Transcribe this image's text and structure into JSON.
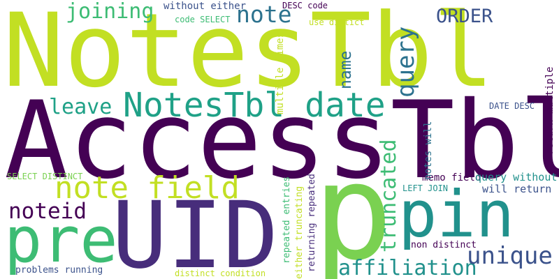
{
  "words": [
    {
      "key": "notestbl_big",
      "text": "NotesTbl",
      "color": "#c2df23"
    },
    {
      "key": "accesstbl",
      "text": "AccessTbl",
      "color": "#440154"
    },
    {
      "key": "uid",
      "text": "UID",
      "color": "#472d7b"
    },
    {
      "key": "p",
      "text": "p",
      "color": "#7ad151"
    },
    {
      "key": "pre",
      "text": "pre",
      "color": "#3dbc74"
    },
    {
      "key": "pin",
      "text": "pin",
      "color": "#21918c"
    },
    {
      "key": "note_field",
      "text": "note field",
      "color": "#c2df23"
    },
    {
      "key": "notestbl_date",
      "text": "NotesTbl date",
      "color": "#1fa187"
    },
    {
      "key": "note",
      "text": "note",
      "color": "#2c728e"
    },
    {
      "key": "joining",
      "text": "joining",
      "color": "#3dbc74"
    },
    {
      "key": "order",
      "text": "ORDER",
      "color": "#3b528b"
    },
    {
      "key": "leave",
      "text": "leave",
      "color": "#1fa187"
    },
    {
      "key": "noteid",
      "text": "noteid",
      "color": "#440154"
    },
    {
      "key": "affiliation",
      "text": "affiliation",
      "color": "#21918c"
    },
    {
      "key": "unique",
      "text": "unique",
      "color": "#3b528b"
    },
    {
      "key": "query",
      "text": "query",
      "color": "#2c728e"
    },
    {
      "key": "truncated",
      "text": "truncated",
      "color": "#3dbc74"
    },
    {
      "key": "name",
      "text": "name",
      "color": "#2c728e"
    },
    {
      "key": "without_either",
      "text": "without either",
      "color": "#3b528b"
    },
    {
      "key": "code_select",
      "text": "code SELECT",
      "color": "#3dbc74"
    },
    {
      "key": "desc_code",
      "text": "DESC code",
      "color": "#440154"
    },
    {
      "key": "use_distict",
      "text": "use distict",
      "color": "#c2df23"
    },
    {
      "key": "multiple_times",
      "text": "multiple times",
      "color": "#c2df23"
    },
    {
      "key": "date_desc",
      "text": "DATE DESC",
      "color": "#3b528b"
    },
    {
      "key": "return_multiple",
      "text": "return multiple",
      "color": "#440154"
    },
    {
      "key": "notes_will",
      "text": "notes will",
      "color": "#2c728e"
    },
    {
      "key": "memo_field",
      "text": "memo field",
      "color": "#440154"
    },
    {
      "key": "query_without",
      "text": "query without",
      "color": "#21918c"
    },
    {
      "key": "left_join",
      "text": "LEFT JOIN",
      "color": "#21918c"
    },
    {
      "key": "will_return",
      "text": "will return",
      "color": "#3b528b"
    },
    {
      "key": "non_distinct",
      "text": "non distinct",
      "color": "#440154"
    },
    {
      "key": "repeated_entries",
      "text": "repeated entries",
      "color": "#3dbc74"
    },
    {
      "key": "returning_repeated",
      "text": "returning repeated",
      "color": "#472d7b"
    },
    {
      "key": "either_truncating",
      "text": "either truncating",
      "color": "#c2df23"
    },
    {
      "key": "select_distinct",
      "text": "SELECT DISTINCT",
      "color": "#7ad151"
    },
    {
      "key": "problems_running",
      "text": "problems running",
      "color": "#3b528b"
    },
    {
      "key": "distinct_condition",
      "text": "distinct condition",
      "color": "#c2df23"
    }
  ]
}
